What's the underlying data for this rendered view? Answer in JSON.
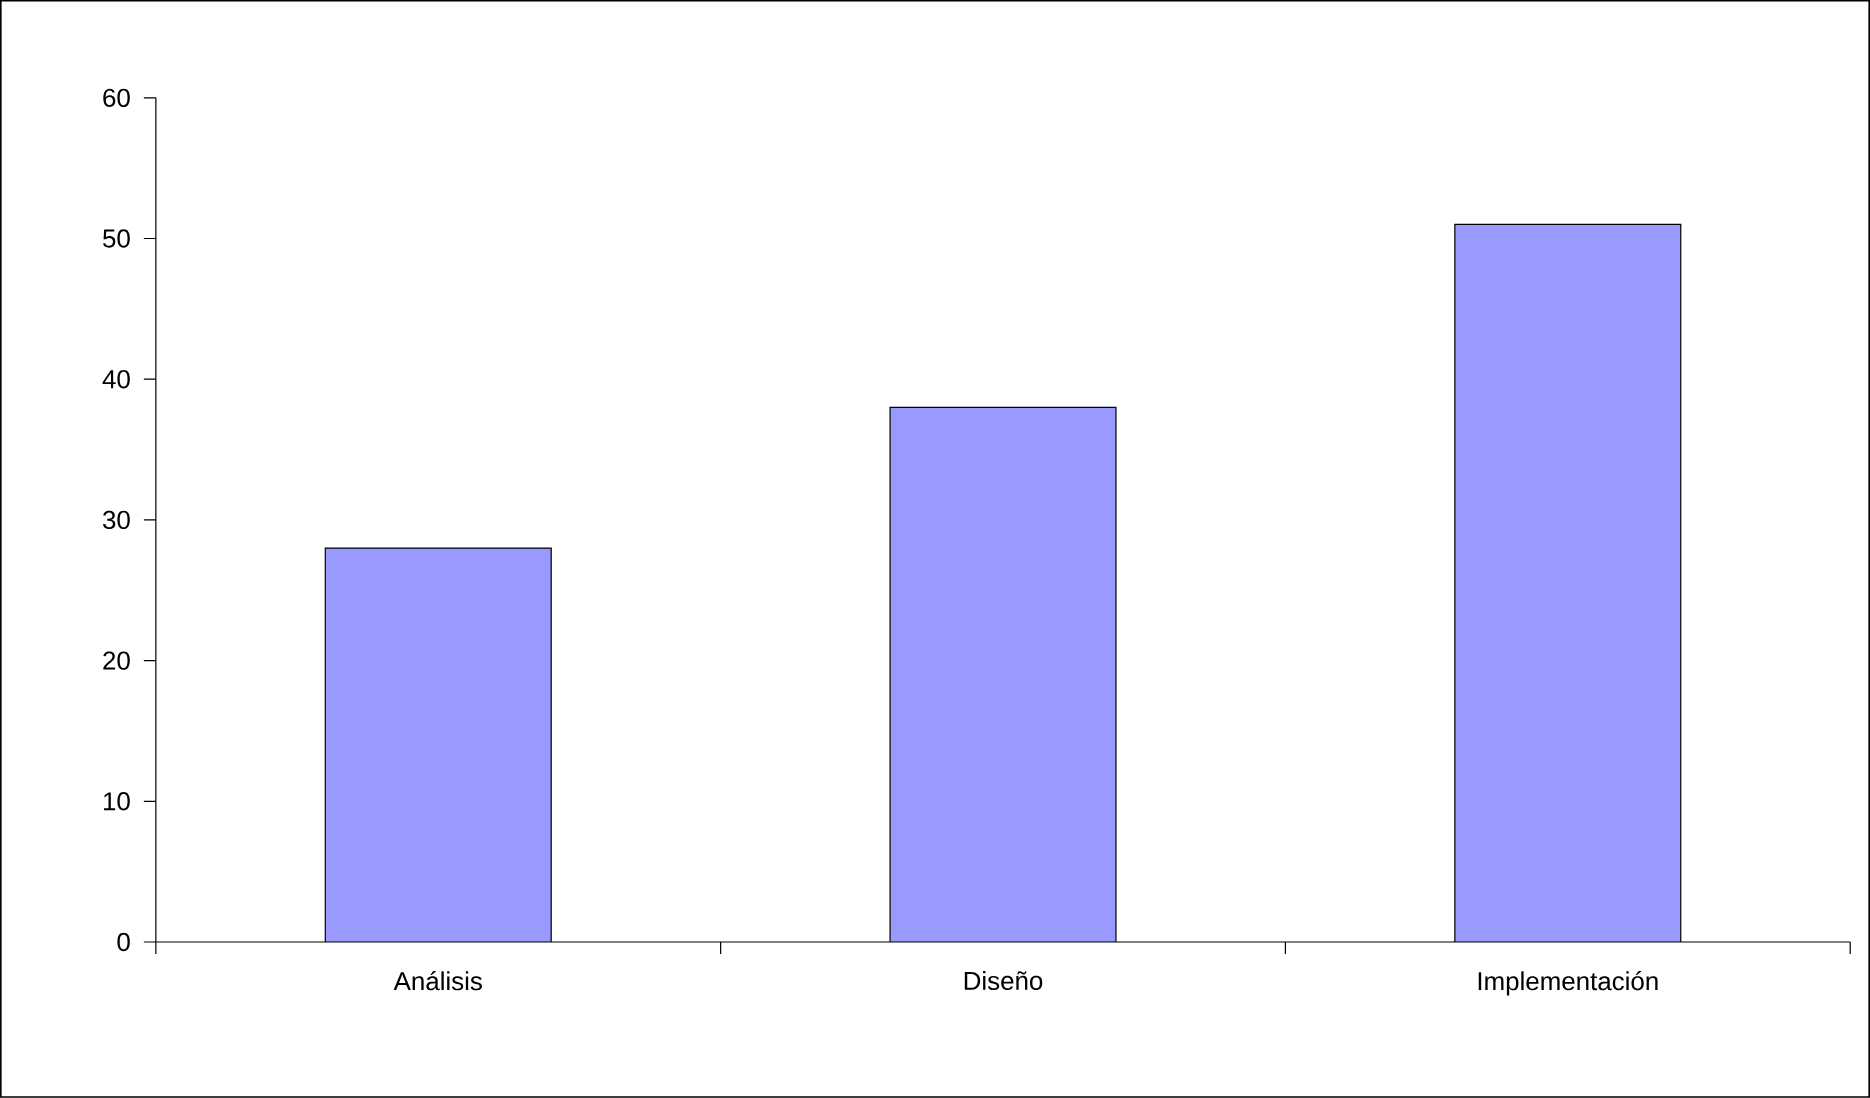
{
  "chart_data": {
    "type": "bar",
    "categories": [
      "Análisis",
      "Diseño",
      "Implementación"
    ],
    "values": [
      28,
      38,
      51
    ],
    "color": "#9999ff",
    "ylim": [
      0,
      60
    ],
    "yticks": [
      0,
      10,
      20,
      30,
      40,
      50,
      60
    ],
    "grid": false
  }
}
